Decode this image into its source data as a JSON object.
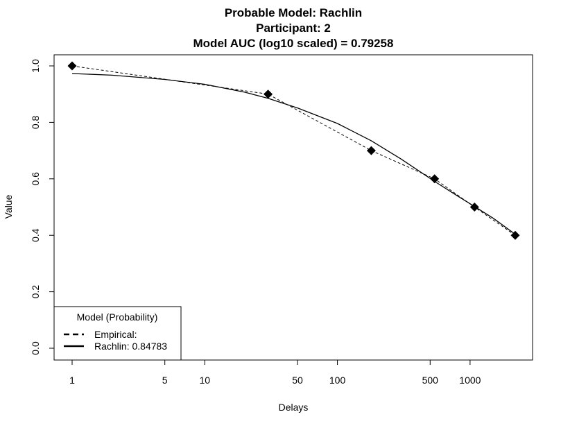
{
  "chart_data": {
    "type": "line",
    "title_lines": [
      "Probable Model: Rachlin",
      "Participant: 2",
      "Model AUC (log10 scaled) = 0.79258"
    ],
    "xlabel": "Delays",
    "ylabel": "Value",
    "x_scale": "log10",
    "xlim": [
      1,
      2190
    ],
    "ylim": [
      0,
      1
    ],
    "x_ticks": [
      1,
      5,
      10,
      50,
      100,
      500,
      1000
    ],
    "x_tick_labels": [
      "1",
      "5",
      "10",
      "50",
      "100",
      "500",
      "1000"
    ],
    "y_ticks": [
      0,
      0.2,
      0.4,
      0.6,
      0.8,
      1.0
    ],
    "y_tick_labels": [
      "0.0",
      "0.2",
      "0.4",
      "0.6",
      "0.8",
      "1.0"
    ],
    "grid": false,
    "legend": {
      "title": "Model (Probability)",
      "position": "bottom-left",
      "entries": [
        {
          "label": "Empirical:",
          "style": "dashed"
        },
        {
          "label": "Rachlin: 0.84783",
          "style": "solid"
        }
      ]
    },
    "series": [
      {
        "name": "Empirical:",
        "style": "dashed",
        "markers": "diamond",
        "x": [
          1,
          30,
          180,
          540,
          1080,
          2190
        ],
        "y": [
          1.0,
          0.9,
          0.7,
          0.6,
          0.5,
          0.4
        ]
      },
      {
        "name": "Rachlin: 0.84783",
        "style": "solid",
        "x": [
          1,
          2,
          5,
          10,
          20,
          30,
          50,
          100,
          180,
          300,
          540,
          800,
          1080,
          1500,
          2190
        ],
        "y": [
          0.973,
          0.967,
          0.952,
          0.935,
          0.907,
          0.885,
          0.851,
          0.796,
          0.735,
          0.671,
          0.591,
          0.54,
          0.502,
          0.46,
          0.404
        ]
      }
    ]
  }
}
